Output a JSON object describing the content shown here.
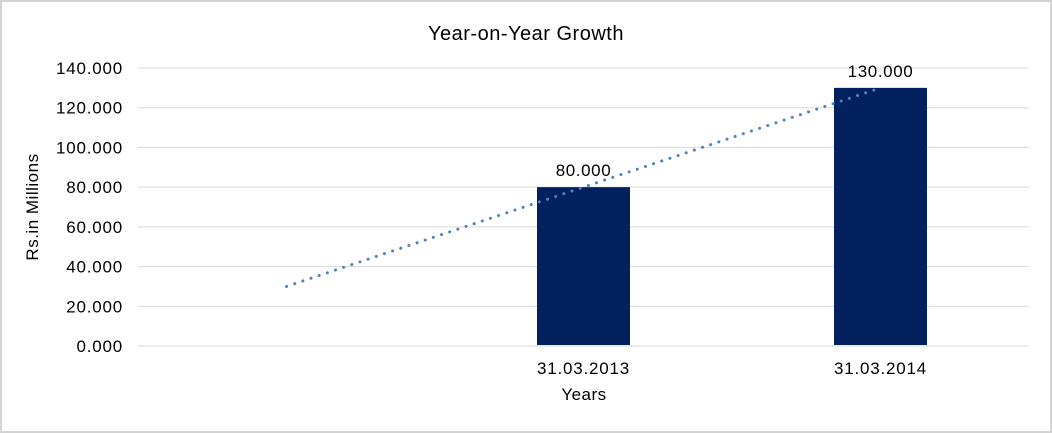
{
  "chart_data": {
    "type": "bar",
    "title": "Year-on-Year Growth",
    "xlabel": "Years",
    "ylabel": "Rs.in Millions",
    "categories": [
      "",
      "31.03.2013",
      "31.03.2014"
    ],
    "series": [
      {
        "name": "bars",
        "type": "bar",
        "values": [
          null,
          80,
          130
        ],
        "data_labels": [
          "",
          "80.000",
          "130.000"
        ],
        "color": "#03215f"
      },
      {
        "name": "trendline",
        "type": "dotted-line",
        "values": [
          30,
          80,
          130
        ],
        "color": "#4f81bd"
      }
    ],
    "ylim": [
      0,
      140
    ],
    "y_ticks": [
      0,
      20,
      40,
      60,
      80,
      100,
      120,
      140
    ],
    "y_tick_labels": [
      "0.000",
      "20.000",
      "40.000",
      "60.000",
      "80.000",
      "100.000",
      "120.000",
      "140.000"
    ],
    "grid": true,
    "legend": "none",
    "colors": {
      "bar": "#03215f",
      "trendline": "#4f81bd",
      "gridline": "#d9d9d9",
      "text": "#000000",
      "frame_border": "#d3d3d3",
      "background": "#ffffff"
    }
  }
}
